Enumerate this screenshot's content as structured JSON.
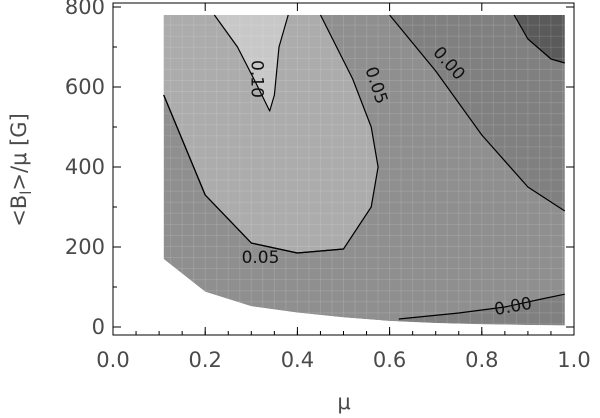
{
  "chart_data": {
    "type": "heatmap",
    "title": "",
    "xlabel": "μ",
    "ylabel": "<B",
    "ylabel_sub": "l",
    "ylabel_rest": ">/μ  [G]",
    "xlim": [
      0.0,
      1.0
    ],
    "ylim": [
      -20,
      810
    ],
    "x_ticks": [
      0.0,
      0.2,
      0.4,
      0.6,
      0.8,
      1.0
    ],
    "x_tick_labels": [
      "0.0",
      "0.2",
      "0.4",
      "0.6",
      "0.8",
      "1.0"
    ],
    "y_ticks": [
      0,
      200,
      400,
      600,
      800
    ],
    "y_tick_labels": [
      "0",
      "200",
      "400",
      "600",
      "800"
    ],
    "grid": true,
    "colors": {
      "band_lt_0": "#808080",
      "band_0_to_005": "#8f8f8f",
      "band_005_to_010": "#acacac",
      "band_gt_010": "#c8c8c8",
      "band_gt_010_corner": "#5a5a5a",
      "contour_line": "#000000",
      "background": "#ffffff"
    },
    "region_boundary": [
      [
        0.11,
        170
      ],
      [
        0.2,
        88
      ],
      [
        0.3,
        52
      ],
      [
        0.4,
        36
      ],
      [
        0.5,
        24
      ],
      [
        0.6,
        15
      ],
      [
        0.7,
        10
      ],
      [
        0.8,
        7
      ],
      [
        0.9,
        5
      ],
      [
        0.98,
        4
      ]
    ],
    "contours": [
      {
        "label": "0.10",
        "label_at": [
          0.3,
          620
        ],
        "points": [
          [
            0.22,
            780
          ],
          [
            0.27,
            700
          ],
          [
            0.31,
            610
          ],
          [
            0.34,
            540
          ],
          [
            0.35,
            580
          ],
          [
            0.36,
            700
          ],
          [
            0.38,
            780
          ]
        ]
      },
      {
        "label": "0.05",
        "label_at": [
          0.56,
          600
        ],
        "points": [
          [
            0.11,
            580
          ],
          [
            0.2,
            330
          ],
          [
            0.3,
            210
          ],
          [
            0.4,
            185
          ],
          [
            0.5,
            195
          ],
          [
            0.56,
            300
          ],
          [
            0.575,
            400
          ],
          [
            0.56,
            500
          ],
          [
            0.52,
            620
          ],
          [
            0.45,
            780
          ]
        ]
      },
      {
        "label": "0.05",
        "label_at": [
          0.32,
          160
        ],
        "points": [
          [
            0.11,
            580
          ],
          [
            0.2,
            330
          ],
          [
            0.3,
            210
          ],
          [
            0.4,
            185
          ],
          [
            0.5,
            195
          ]
        ]
      },
      {
        "label": "0.00",
        "label_at": [
          0.72,
          650
        ],
        "points": [
          [
            0.6,
            780
          ],
          [
            0.7,
            640
          ],
          [
            0.8,
            480
          ],
          [
            0.9,
            350
          ],
          [
            0.98,
            290
          ]
        ]
      },
      {
        "label": "0.00",
        "label_at": [
          0.87,
          38
        ],
        "points": [
          [
            0.62,
            20
          ],
          [
            0.75,
            35
          ],
          [
            0.85,
            50
          ],
          [
            0.93,
            70
          ],
          [
            0.98,
            82
          ]
        ]
      },
      {
        "label": "",
        "label_at": null,
        "points": [
          [
            0.87,
            780
          ],
          [
            0.9,
            720
          ],
          [
            0.95,
            670
          ],
          [
            0.98,
            660
          ]
        ]
      }
    ],
    "contour_labels": [
      "0.10",
      "0.05",
      "0.05",
      "0.00",
      "0.00"
    ]
  }
}
